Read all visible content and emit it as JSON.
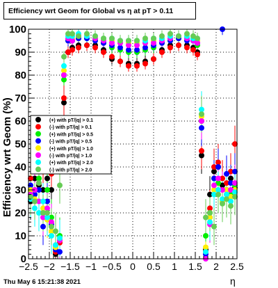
{
  "title": "Efficiency wrt Geom for Global vs   η at pT > 0.11",
  "footer": "Thu May  6 15:21:38 2021",
  "chart_data": {
    "type": "scatter",
    "title": "Efficiency wrt Geom for Global vs   η at pT > 0.11",
    "xlabel": "η",
    "ylabel": "Efficiency wrt Geom (%)",
    "xlim": [
      -2.5,
      2.5
    ],
    "ylim": [
      0,
      100
    ],
    "x_ticks": [
      "−2.5",
      "−2",
      "−1.5",
      "−1",
      "−0.5",
      "0",
      "0.5",
      "1",
      "1.5",
      "2",
      "2.5"
    ],
    "y_ticks": [
      "0",
      "10",
      "20",
      "30",
      "40",
      "50",
      "60",
      "70",
      "80",
      "90",
      "100"
    ],
    "grid": true,
    "legend_position": "left-middle",
    "series": [
      {
        "name": "(+) with pT/|q| > 0.1",
        "color": "#000000",
        "x": [
          -2.45,
          -2.35,
          -2.25,
          -2.15,
          -2.05,
          -1.95,
          -1.85,
          -1.75,
          -1.65,
          -1.55,
          -1.45,
          -1.3,
          -1.1,
          -0.9,
          -0.7,
          -0.5,
          -0.3,
          -0.1,
          0.1,
          0.3,
          0.5,
          0.7,
          0.9,
          1.1,
          1.3,
          1.45,
          1.55,
          1.65,
          1.75,
          1.85,
          1.95,
          2.05,
          2.15,
          2.25,
          2.35,
          2.45
        ],
        "y": [
          25,
          35,
          32,
          30,
          35,
          30,
          2,
          8,
          68,
          90,
          92,
          93,
          93,
          93,
          91,
          87,
          86,
          85,
          85,
          86,
          87,
          91,
          93,
          93,
          93,
          92,
          90,
          45,
          4,
          28,
          38,
          40,
          32,
          30,
          35,
          31
        ]
      },
      {
        "name": "(-) with pT/|q| > 0.1",
        "color": "#ff0000",
        "x": [
          -2.45,
          -2.35,
          -2.25,
          -2.15,
          -2.05,
          -1.95,
          -1.85,
          -1.75,
          -1.65,
          -1.55,
          -1.45,
          -1.3,
          -1.1,
          -0.9,
          -0.7,
          -0.5,
          -0.3,
          -0.1,
          0.1,
          0.3,
          0.5,
          0.7,
          0.9,
          1.1,
          1.3,
          1.45,
          1.55,
          1.65,
          1.75,
          1.85,
          1.95,
          2.05,
          2.15,
          2.25,
          2.35,
          2.45
        ],
        "y": [
          35,
          30,
          33,
          38,
          40,
          37,
          3,
          7,
          70,
          90,
          91,
          92,
          93,
          92,
          90,
          88,
          86,
          84,
          84,
          85,
          87,
          90,
          92,
          93,
          92,
          91,
          89,
          47,
          3,
          22,
          40,
          42,
          35,
          33,
          38,
          50
        ]
      },
      {
        "name": "(+) with pT/|q| > 0.5",
        "color": "#00ee00",
        "x": [
          -2.45,
          -2.35,
          -2.25,
          -2.15,
          -2.05,
          -1.95,
          -1.85,
          -1.75,
          -1.65,
          -1.55,
          -1.45,
          -1.3,
          -1.1,
          -0.9,
          -0.7,
          -0.5,
          -0.3,
          -0.1,
          0.1,
          0.3,
          0.5,
          0.7,
          0.9,
          1.1,
          1.3,
          1.45,
          1.55,
          1.65,
          1.75,
          1.85,
          1.95,
          2.05,
          2.15,
          2.25,
          2.35,
          2.45
        ],
        "y": [
          30,
          28,
          35,
          20,
          30,
          18,
          5,
          10,
          78,
          95,
          95,
          96,
          96,
          95,
          94,
          92,
          91,
          90,
          90,
          91,
          92,
          94,
          95,
          96,
          96,
          95,
          93,
          60,
          10,
          20,
          35,
          33,
          25,
          30,
          28,
          32
        ]
      },
      {
        "name": "(-) with pT/|q| > 0.5",
        "color": "#0000ff",
        "x": [
          -2.45,
          -2.35,
          -2.25,
          -2.15,
          -2.05,
          -1.95,
          -1.85,
          -1.75,
          -1.65,
          -1.55,
          -1.45,
          -1.3,
          -1.1,
          -0.9,
          -0.7,
          -0.5,
          -0.3,
          -0.1,
          0.1,
          0.3,
          0.5,
          0.7,
          0.9,
          1.1,
          1.3,
          1.45,
          1.55,
          1.65,
          1.75,
          1.85,
          1.95,
          2.05,
          2.15,
          2.25,
          2.35,
          2.45
        ],
        "y": [
          32,
          28,
          30,
          14,
          25,
          15,
          4,
          3,
          80,
          95,
          95,
          96,
          96,
          95,
          94,
          93,
          92,
          91,
          91,
          92,
          93,
          94,
          95,
          96,
          95,
          95,
          94,
          57,
          2,
          18,
          35,
          40,
          100,
          37,
          33,
          38
        ]
      },
      {
        "name": "(+) with pT/|q| > 1.0",
        "color": "#ffee00",
        "x": [
          -2.45,
          -2.35,
          -2.25,
          -2.15,
          -2.05,
          -1.95,
          -1.85,
          -1.75,
          -1.65,
          -1.55,
          -1.45,
          -1.3,
          -1.1,
          -0.9,
          -0.7,
          -0.5,
          -0.3,
          -0.1,
          0.1,
          0.3,
          0.5,
          0.7,
          0.9,
          1.1,
          1.3,
          1.45,
          1.55,
          1.65,
          1.75,
          1.85,
          1.95,
          2.05,
          2.15,
          2.25,
          2.35,
          2.45
        ],
        "y": [
          30,
          26,
          20,
          22,
          17,
          12,
          5,
          8,
          82,
          96,
          96,
          97,
          97,
          96,
          96,
          95,
          94,
          94,
          94,
          94,
          95,
          96,
          96,
          97,
          97,
          96,
          95,
          62,
          5,
          18,
          30,
          28,
          25,
          30,
          27,
          30
        ]
      },
      {
        "name": "(-) with pT/|q| > 1.0",
        "color": "#ff00ff",
        "x": [
          -2.45,
          -2.35,
          -2.25,
          -2.15,
          -2.05,
          -1.95,
          -1.85,
          -1.75,
          -1.65,
          -1.55,
          -1.45,
          -1.3,
          -1.1,
          -0.9,
          -0.7,
          -0.5,
          -0.3,
          -0.1,
          0.1,
          0.3,
          0.5,
          0.7,
          0.9,
          1.1,
          1.3,
          1.45,
          1.55,
          1.65,
          1.75,
          1.85,
          1.95,
          2.05,
          2.15,
          2.25,
          2.35,
          2.45
        ],
        "y": [
          28,
          30,
          25,
          18,
          22,
          16,
          6,
          8,
          80,
          96,
          95,
          97,
          97,
          96,
          95,
          94,
          94,
          93,
          93,
          94,
          94,
          95,
          96,
          97,
          96,
          95,
          94,
          60,
          0,
          15,
          32,
          35,
          30,
          28,
          30,
          33
        ]
      },
      {
        "name": "(+) with pT/|q| > 2.0",
        "color": "#00ffff",
        "x": [
          -2.45,
          -2.35,
          -2.25,
          -2.15,
          -2.05,
          -1.95,
          -1.85,
          -1.75,
          -1.65,
          -1.55,
          -1.45,
          -1.3,
          -1.1,
          -0.9,
          -0.7,
          -0.5,
          -0.3,
          -0.1,
          0.1,
          0.3,
          0.5,
          0.7,
          0.9,
          1.1,
          1.3,
          1.45,
          1.55,
          1.65,
          1.75,
          1.85,
          1.95,
          2.05,
          2.15,
          2.25,
          2.35,
          2.45
        ],
        "y": [
          26,
          22,
          20,
          25,
          18,
          10,
          6,
          9,
          84,
          97,
          97,
          98,
          97,
          97,
          96,
          96,
          95,
          95,
          95,
          95,
          96,
          96,
          97,
          97,
          97,
          96,
          96,
          65,
          3,
          16,
          28,
          30,
          26,
          28,
          25,
          29
        ]
      },
      {
        "name": "(-) with pT/|q| > 2.0",
        "color": "#66cc55",
        "x": [
          -2.45,
          -2.35,
          -2.25,
          -2.15,
          -2.05,
          -1.95,
          -1.85,
          -1.75,
          -1.65,
          -1.55,
          -1.45,
          -1.3,
          -1.1,
          -0.9,
          -0.7,
          -0.5,
          -0.3,
          -0.1,
          0.1,
          0.3,
          0.5,
          0.7,
          0.9,
          1.1,
          1.3,
          1.45,
          1.55,
          1.65,
          1.75,
          1.85,
          1.95,
          2.05,
          2.15,
          2.25,
          2.35,
          2.45
        ],
        "y": [
          27,
          25,
          33,
          20,
          20,
          14,
          12,
          32,
          88,
          98,
          98,
          97,
          98,
          97,
          96,
          96,
          95,
          95,
          95,
          96,
          96,
          97,
          98,
          97,
          98,
          97,
          96,
          63,
          18,
          20,
          14,
          28,
          24,
          26,
          23,
          27
        ]
      }
    ]
  }
}
